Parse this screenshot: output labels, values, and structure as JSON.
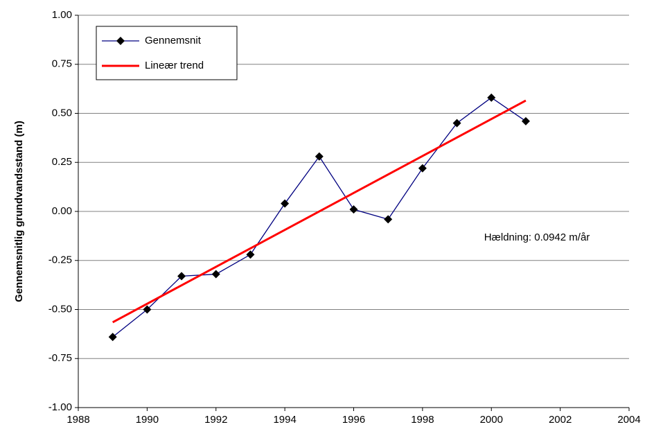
{
  "chart_data": {
    "type": "line",
    "y_label": "Gennemsnitlig grundvandsstand (m)",
    "annotation": "Hældning: 0.0942 m/år",
    "x": [
      1989,
      1990,
      1991,
      1992,
      1993,
      1994,
      1995,
      1996,
      1997,
      1998,
      1999,
      2000,
      2001
    ],
    "series": [
      {
        "name": "Gennemsnit",
        "color": "#000080",
        "marker": "diamond",
        "values": [
          -0.64,
          -0.5,
          -0.33,
          -0.32,
          -0.22,
          0.04,
          0.28,
          0.01,
          -0.04,
          0.22,
          0.45,
          0.58,
          0.46
        ]
      },
      {
        "name": "Lineær trend",
        "color": "#ff0000",
        "x": [
          1989,
          2001
        ],
        "values": [
          -0.565,
          0.565
        ]
      }
    ],
    "xlim": [
      1988,
      2004
    ],
    "xticks": [
      1988,
      1990,
      1992,
      1994,
      1996,
      1998,
      2000,
      2002,
      2004
    ],
    "ylim": [
      -1,
      1
    ],
    "yticks": [
      {
        "value": -1,
        "label": "-1.00"
      },
      {
        "value": -0.75,
        "label": "-0.75"
      },
      {
        "value": -0.5,
        "label": "-0.50"
      },
      {
        "value": -0.25,
        "label": "-0.25"
      },
      {
        "value": 0,
        "label": "0.00"
      },
      {
        "value": 0.25,
        "label": "0.25"
      },
      {
        "value": 0.5,
        "label": "0.50"
      },
      {
        "value": 0.75,
        "label": "0.75"
      },
      {
        "value": 1,
        "label": "1.00"
      }
    ],
    "grid": true,
    "legend": "upper left"
  }
}
